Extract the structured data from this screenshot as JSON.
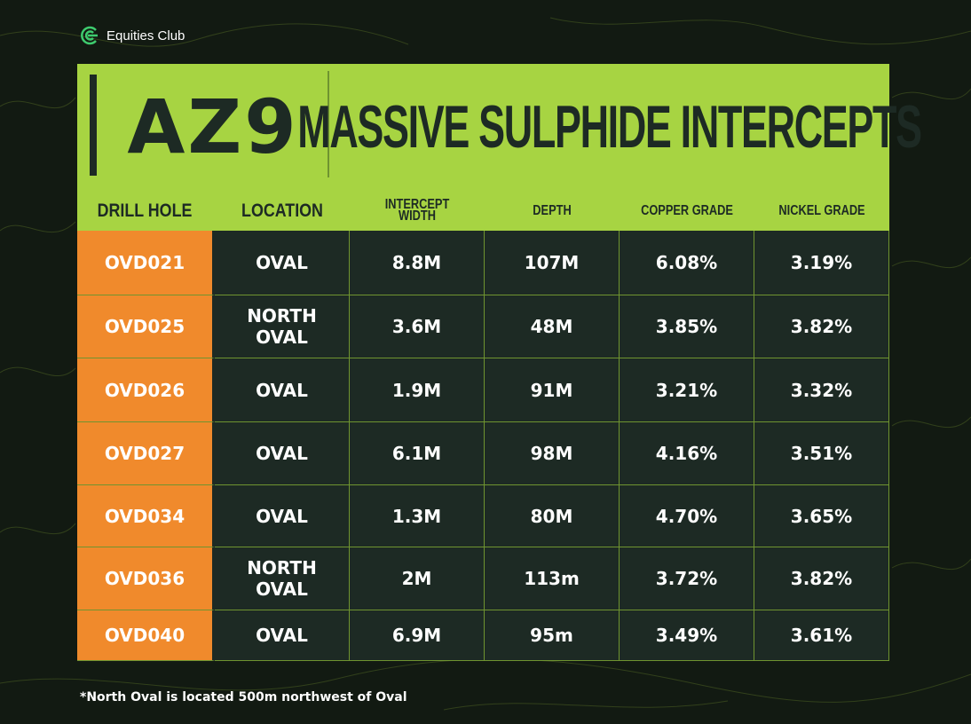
{
  "brand": {
    "name": "Equities Club",
    "icon": "equities-club-logo-icon"
  },
  "header": {
    "code": "AZ9",
    "title": "MASSIVE SULPHIDE INTERCEPTS"
  },
  "colors": {
    "accent": "#a7d442",
    "orange": "#f08a2c",
    "dark": "#1d2a24"
  },
  "columns": [
    "DRILL HOLE",
    "LOCATION",
    "INTERCEPT\nWIDTH",
    "DEPTH",
    "COPPER GRADE",
    "NICKEL GRADE"
  ],
  "rows": [
    [
      "OVD021",
      "OVAL",
      "8.8M",
      "107M",
      "6.08%",
      "3.19%"
    ],
    [
      "OVD025",
      "NORTH\nOVAL",
      "3.6M",
      "48M",
      "3.85%",
      "3.82%"
    ],
    [
      "OVD026",
      "OVAL",
      "1.9M",
      "91M",
      "3.21%",
      "3.32%"
    ],
    [
      "OVD027",
      "OVAL",
      "6.1M",
      "98M",
      "4.16%",
      "3.51%"
    ],
    [
      "OVD034",
      "OVAL",
      "1.3M",
      "80M",
      "4.70%",
      "3.65%"
    ],
    [
      "OVD036",
      "NORTH\nOVAL",
      "2M",
      "113m",
      "3.72%",
      "3.82%"
    ],
    [
      "OVD040",
      "OVAL",
      "6.9M",
      "95m",
      "3.49%",
      "3.61%"
    ]
  ],
  "footnote": "*North Oval is located 500m northwest of Oval"
}
